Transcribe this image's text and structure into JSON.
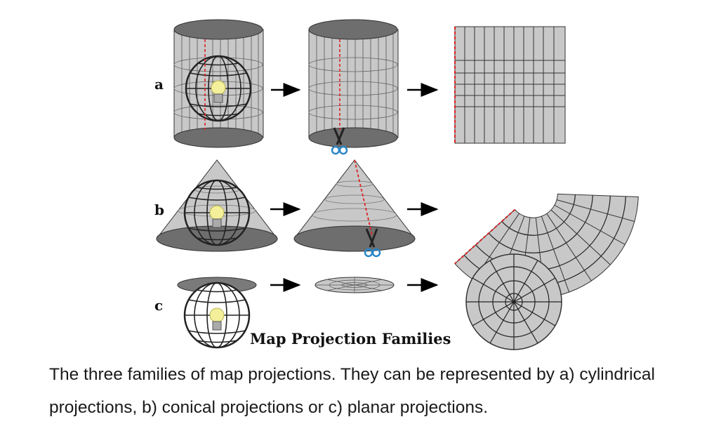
{
  "figure": {
    "title": "Map Projection Families",
    "rows": [
      {
        "label": "a",
        "projection": "cylindrical"
      },
      {
        "label": "b",
        "projection": "conical"
      },
      {
        "label": "c",
        "projection": "planar"
      }
    ],
    "colors": {
      "surface": "#c8c8c8",
      "surface_dark": "#6e6e6e",
      "cut_line": "#e02020",
      "bulb": "#f3ef9a",
      "scissors_handle": "#2a86c9"
    },
    "icons": [
      "globe-icon",
      "light-bulb-icon",
      "scissors-icon",
      "arrow-right-icon"
    ]
  },
  "caption": {
    "text": "The three families of map projections. They can be represented by a) cylindrical projections, b) conical projections or c) planar projections."
  }
}
